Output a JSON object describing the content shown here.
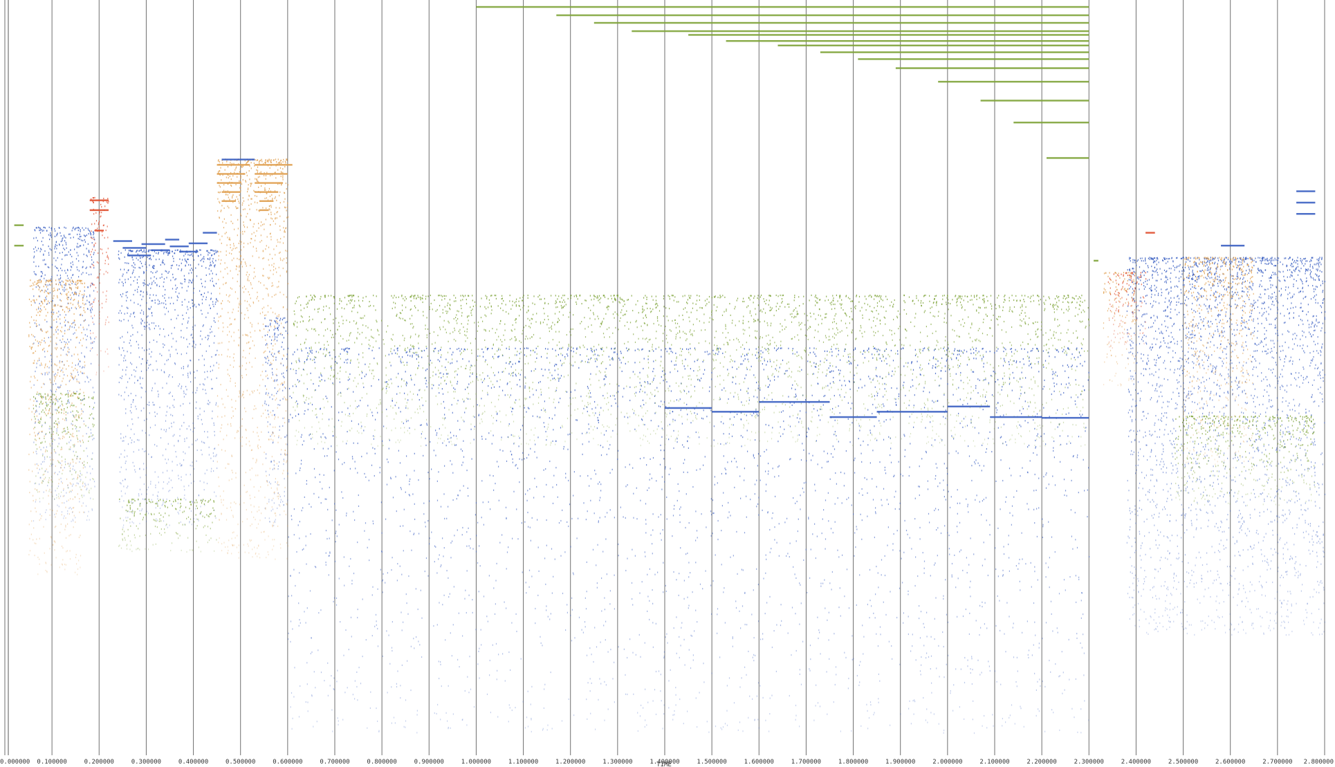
{
  "chart_data": {
    "type": "scatter",
    "title": "",
    "xlabel": "TIME",
    "ylabel": "",
    "xlim": [
      0.0,
      2.8
    ],
    "grid": true,
    "legend": "none",
    "x_ticks": [
      "0.000000",
      "0.100000",
      "0.200000",
      "0.300000",
      "0.400000",
      "0.500000",
      "0.600000",
      "0.700000",
      "0.800000",
      "0.900000",
      "1.000000",
      "1.100000",
      "1.200000",
      "1.300000",
      "1.400000",
      "1.500000",
      "1.600000",
      "1.700000",
      "1.800000",
      "1.900000",
      "2.000000",
      "2.100000",
      "2.200000",
      "2.300000",
      "2.400000",
      "2.500000",
      "2.600000",
      "2.700000",
      "2.800000"
    ],
    "grid_x_values": [
      0.0,
      0.1,
      0.2,
      0.3,
      0.4,
      0.5,
      0.6,
      0.7,
      0.8,
      0.9,
      1.0,
      1.1,
      1.2,
      1.3,
      1.4,
      1.5,
      1.6,
      1.7,
      1.8,
      1.9,
      2.0,
      2.1,
      2.2,
      2.3,
      2.4,
      2.5,
      2.6,
      2.7,
      2.8
    ],
    "colors": {
      "blue": "#3a5fc2",
      "green": "#7fa43a",
      "orange": "#e0a050",
      "red": "#e05030",
      "grid": "#555555"
    },
    "series": [
      {
        "color": "blue",
        "clusters": [
          {
            "x": [
              0.06,
              0.19
            ],
            "y": [
              0.3,
              0.69
            ]
          },
          {
            "x": [
              0.24,
              0.45
            ],
            "y": [
              0.33,
              0.7
            ]
          },
          {
            "x": [
              0.55,
              0.6
            ],
            "y": [
              0.42,
              0.7
            ]
          },
          {
            "x": [
              0.6,
              2.3
            ],
            "y": [
              0.46,
              0.97
            ]
          },
          {
            "x": [
              2.38,
              2.8
            ],
            "y": [
              0.34,
              0.84
            ]
          }
        ],
        "bars": [
          {
            "x": [
              0.23,
              0.27
            ],
            "y": 0.319
          },
          {
            "x": [
              0.25,
              0.3
            ],
            "y": 0.328
          },
          {
            "x": [
              0.26,
              0.31
            ],
            "y": 0.338
          },
          {
            "x": [
              0.29,
              0.34
            ],
            "y": 0.323
          },
          {
            "x": [
              0.31,
              0.35
            ],
            "y": 0.331
          },
          {
            "x": [
              0.34,
              0.37
            ],
            "y": 0.317
          },
          {
            "x": [
              0.35,
              0.39
            ],
            "y": 0.326
          },
          {
            "x": [
              0.37,
              0.41
            ],
            "y": 0.333
          },
          {
            "x": [
              0.39,
              0.43
            ],
            "y": 0.322
          },
          {
            "x": [
              0.42,
              0.45
            ],
            "y": 0.308
          },
          {
            "x": [
              0.46,
              0.53
            ],
            "y": 0.211
          },
          {
            "x": [
              1.4,
              1.5
            ],
            "y": 0.54
          },
          {
            "x": [
              1.5,
              1.6
            ],
            "y": 0.545
          },
          {
            "x": [
              1.6,
              1.75
            ],
            "y": 0.532
          },
          {
            "x": [
              1.75,
              1.85
            ],
            "y": 0.552
          },
          {
            "x": [
              1.85,
              2.0
            ],
            "y": 0.545
          },
          {
            "x": [
              2.0,
              2.09
            ],
            "y": 0.538
          },
          {
            "x": [
              2.09,
              2.2
            ],
            "y": 0.552
          },
          {
            "x": [
              2.2,
              2.3
            ],
            "y": 0.553
          },
          {
            "x": [
              2.74,
              2.78
            ],
            "y": 0.253
          },
          {
            "x": [
              2.74,
              2.78
            ],
            "y": 0.268
          },
          {
            "x": [
              2.74,
              2.78
            ],
            "y": 0.283
          },
          {
            "x": [
              2.58,
              2.63
            ],
            "y": 0.325
          }
        ]
      },
      {
        "color": "green",
        "clusters": [
          {
            "x": [
              0.61,
              2.3
            ],
            "y": [
              0.39,
              0.59
            ]
          },
          {
            "x": [
              0.06,
              0.19
            ],
            "y": [
              0.52,
              0.66
            ]
          },
          {
            "x": [
              0.24,
              0.45
            ],
            "y": [
              0.66,
              0.73
            ]
          },
          {
            "x": [
              2.48,
              2.78
            ],
            "y": [
              0.55,
              0.67
            ]
          }
        ],
        "bars": [
          {
            "x": [
              1.0,
              2.3
            ],
            "y": 0.009
          },
          {
            "x": [
              1.17,
              2.3
            ],
            "y": 0.02
          },
          {
            "x": [
              1.25,
              2.3
            ],
            "y": 0.03
          },
          {
            "x": [
              1.33,
              2.3
            ],
            "y": 0.041
          },
          {
            "x": [
              1.45,
              2.3
            ],
            "y": 0.046
          },
          {
            "x": [
              1.53,
              2.3
            ],
            "y": 0.054
          },
          {
            "x": [
              1.64,
              2.3
            ],
            "y": 0.06
          },
          {
            "x": [
              1.73,
              2.3
            ],
            "y": 0.069
          },
          {
            "x": [
              1.81,
              2.3
            ],
            "y": 0.078
          },
          {
            "x": [
              1.89,
              2.3
            ],
            "y": 0.09
          },
          {
            "x": [
              1.98,
              2.3
            ],
            "y": 0.108
          },
          {
            "x": [
              2.07,
              2.3
            ],
            "y": 0.133
          },
          {
            "x": [
              2.14,
              2.3
            ],
            "y": 0.162
          },
          {
            "x": [
              2.21,
              2.3
            ],
            "y": 0.209
          },
          {
            "x": [
              0.02,
              0.04
            ],
            "y": 0.298
          },
          {
            "x": [
              0.02,
              0.04
            ],
            "y": 0.325
          },
          {
            "x": [
              2.31,
              2.32
            ],
            "y": 0.345
          }
        ]
      },
      {
        "color": "orange",
        "clusters": [
          {
            "x": [
              0.45,
              0.6
            ],
            "y": [
              0.21,
              0.74
            ]
          },
          {
            "x": [
              0.05,
              0.17
            ],
            "y": [
              0.37,
              0.76
            ]
          },
          {
            "x": [
              2.33,
              2.4
            ],
            "y": [
              0.36,
              0.51
            ]
          },
          {
            "x": [
              2.5,
              2.65
            ],
            "y": [
              0.34,
              0.62
            ]
          }
        ],
        "bars": [
          {
            "x": [
              0.45,
              0.52
            ],
            "y": 0.218
          },
          {
            "x": [
              0.45,
              0.51
            ],
            "y": 0.23
          },
          {
            "x": [
              0.45,
              0.5
            ],
            "y": 0.242
          },
          {
            "x": [
              0.46,
              0.5
            ],
            "y": 0.254
          },
          {
            "x": [
              0.46,
              0.49
            ],
            "y": 0.266
          },
          {
            "x": [
              0.53,
              0.61
            ],
            "y": 0.218
          },
          {
            "x": [
              0.53,
              0.6
            ],
            "y": 0.23
          },
          {
            "x": [
              0.53,
              0.59
            ],
            "y": 0.242
          },
          {
            "x": [
              0.53,
              0.58
            ],
            "y": 0.254
          },
          {
            "x": [
              0.54,
              0.57
            ],
            "y": 0.266
          },
          {
            "x": [
              0.54,
              0.56
            ],
            "y": 0.278
          }
        ]
      },
      {
        "color": "red",
        "clusters": [
          {
            "x": [
              0.18,
              0.22
            ],
            "y": [
              0.26,
              0.5
            ]
          },
          {
            "x": [
              2.34,
              2.42
            ],
            "y": [
              0.36,
              0.46
            ]
          }
        ],
        "bars": [
          {
            "x": [
              0.18,
              0.22
            ],
            "y": 0.265
          },
          {
            "x": [
              0.18,
              0.22
            ],
            "y": 0.278
          },
          {
            "x": [
              0.19,
              0.21
            ],
            "y": 0.305
          },
          {
            "x": [
              2.42,
              2.44
            ],
            "y": 0.308
          }
        ]
      }
    ]
  }
}
